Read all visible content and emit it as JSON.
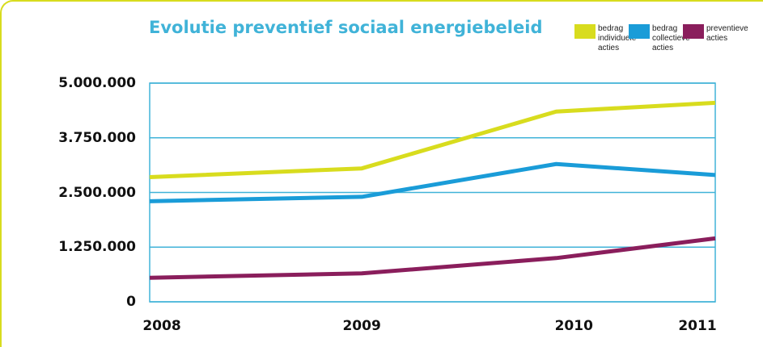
{
  "chart_data": {
    "type": "line",
    "title": "Evolutie preventief sociaal energiebeleid",
    "xlabel": "",
    "ylabel": "",
    "x": [
      "2008",
      "2009",
      "2010",
      "2011"
    ],
    "x_positions": [
      0,
      1.2,
      2.4,
      3.2
    ],
    "ylim": [
      0,
      5000000
    ],
    "yticks": [
      0,
      1250000,
      2500000,
      3750000,
      5000000
    ],
    "ytick_labels": [
      "0",
      "1.250.000",
      "2.500.000",
      "3.750.000",
      "5.000.000"
    ],
    "grid": true,
    "legend_position": "top-right",
    "series": [
      {
        "name": "bedrag individuele acties",
        "color": "#d8dc1e",
        "points": [
          [
            0,
            2850000
          ],
          [
            1.2,
            3050000
          ],
          [
            2.3,
            4350000
          ],
          [
            3.2,
            4550000
          ]
        ]
      },
      {
        "name": "bedrag collectieve acties",
        "color": "#1a9cd8",
        "points": [
          [
            0,
            2300000
          ],
          [
            1.2,
            2400000
          ],
          [
            2.3,
            3150000
          ],
          [
            3.2,
            2900000
          ]
        ]
      },
      {
        "name": "preventieve acties",
        "color": "#8a1e5c",
        "points": [
          [
            0,
            550000
          ],
          [
            1.2,
            650000
          ],
          [
            2.3,
            1000000
          ],
          [
            3.2,
            1450000
          ]
        ]
      }
    ]
  },
  "legend": {
    "items": [
      {
        "label": "bedrag individuele acties",
        "color": "#d8dc1e"
      },
      {
        "label": "bedrag collectieve acties",
        "color": "#1a9cd8"
      },
      {
        "label": "preventieve acties",
        "color": "#8a1e5c"
      }
    ]
  },
  "colors": {
    "frame": "#d8dc1e",
    "grid": "#40b3d8",
    "title": "#40b3d8"
  }
}
